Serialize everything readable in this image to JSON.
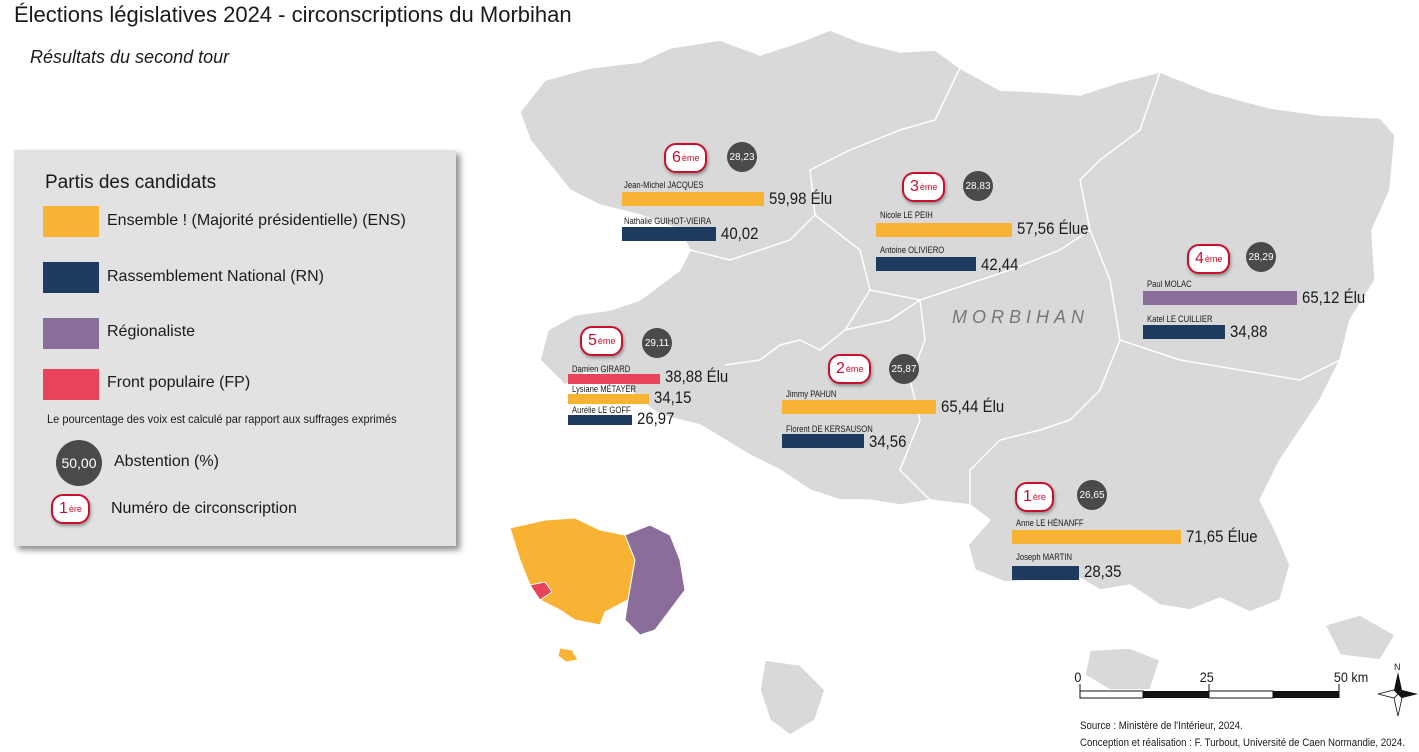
{
  "title": "Élections législatives 2024 - circonscriptions du Morbihan",
  "subtitle": "Résultats du second tour",
  "department_label": "MORBIHAN",
  "colors": {
    "ENS": "#f8b334",
    "RN": "#1f3a5f",
    "REG": "#8a6d9a",
    "FP": "#e8435a",
    "land": "#d9d9d9",
    "abstention": "#4a4a4a",
    "badge": "#c8102e"
  },
  "legend": {
    "title": "Partis des candidats",
    "items": [
      {
        "label": "Ensemble ! (Majorité présidentielle) (ENS)",
        "party": "ENS"
      },
      {
        "label": "Rassemblement National (RN)",
        "party": "RN"
      },
      {
        "label": "Régionaliste",
        "party": "REG"
      },
      {
        "label": "Front populaire (FP)",
        "party": "FP"
      }
    ],
    "note": "Le pourcentage des voix est calculé par rapport aux suffrages exprimés",
    "abstention_value": "50,00",
    "abstention_label": "Abstention (%)",
    "number_example": "1",
    "number_example_sup": "ère",
    "number_label": "Numéro de circonscription"
  },
  "districts": [
    {
      "number": "6",
      "sup": "ème",
      "abstention": "28,23",
      "candidates": [
        {
          "name": "Jean-Michel JACQUES",
          "party": "ENS",
          "share": 59.98,
          "label": "59,98 Élu"
        },
        {
          "name": "Nathalie GUIHOT-VIEIRA",
          "party": "RN",
          "share": 40.02,
          "label": "40,02"
        }
      ]
    },
    {
      "number": "3",
      "sup": "ème",
      "abstention": "28,83",
      "candidates": [
        {
          "name": "Nicole LE PEIH",
          "party": "ENS",
          "share": 57.56,
          "label": "57,56 Élue"
        },
        {
          "name": "Antoine OLIVIERO",
          "party": "RN",
          "share": 42.44,
          "label": "42,44"
        }
      ]
    },
    {
      "number": "4",
      "sup": "ème",
      "abstention": "28,29",
      "candidates": [
        {
          "name": "Paul MOLAC",
          "party": "REG",
          "share": 65.12,
          "label": "65,12 Élu"
        },
        {
          "name": "Katel LE CUILLIER",
          "party": "RN",
          "share": 34.88,
          "label": "34,88"
        }
      ]
    },
    {
      "number": "5",
      "sup": "ème",
      "abstention": "29,11",
      "candidates": [
        {
          "name": "Damien GIRARD",
          "party": "FP",
          "share": 38.88,
          "label": "38,88 Élu"
        },
        {
          "name": "Lysiane MÉTAYER",
          "party": "ENS",
          "share": 34.15,
          "label": "34,15"
        },
        {
          "name": "Aurélie LE GOFF",
          "party": "RN",
          "share": 26.97,
          "label": "26,97"
        }
      ]
    },
    {
      "number": "2",
      "sup": "ème",
      "abstention": "25,87",
      "candidates": [
        {
          "name": "Jimmy PAHUN",
          "party": "ENS",
          "share": 65.44,
          "label": "65,44 Élu"
        },
        {
          "name": "Florent DE KERSAUSON",
          "party": "RN",
          "share": 34.56,
          "label": "34,56"
        }
      ]
    },
    {
      "number": "1",
      "sup": "ère",
      "abstention": "26,65",
      "candidates": [
        {
          "name": "Anne LE HÉNANFF",
          "party": "ENS",
          "share": 71.65,
          "label": "71,65 Élue"
        },
        {
          "name": "Joseph MARTIN",
          "party": "RN",
          "share": 28.35,
          "label": "28,35"
        }
      ]
    }
  ],
  "scale": {
    "labels": [
      "0",
      "25",
      "50 km"
    ]
  },
  "north": "N",
  "source_lines": [
    "Source : Ministère de l'Intérieur, 2024.",
    "Conception et réalisation : F. Turbout, Université de Caen Normandie, 2024."
  ]
}
